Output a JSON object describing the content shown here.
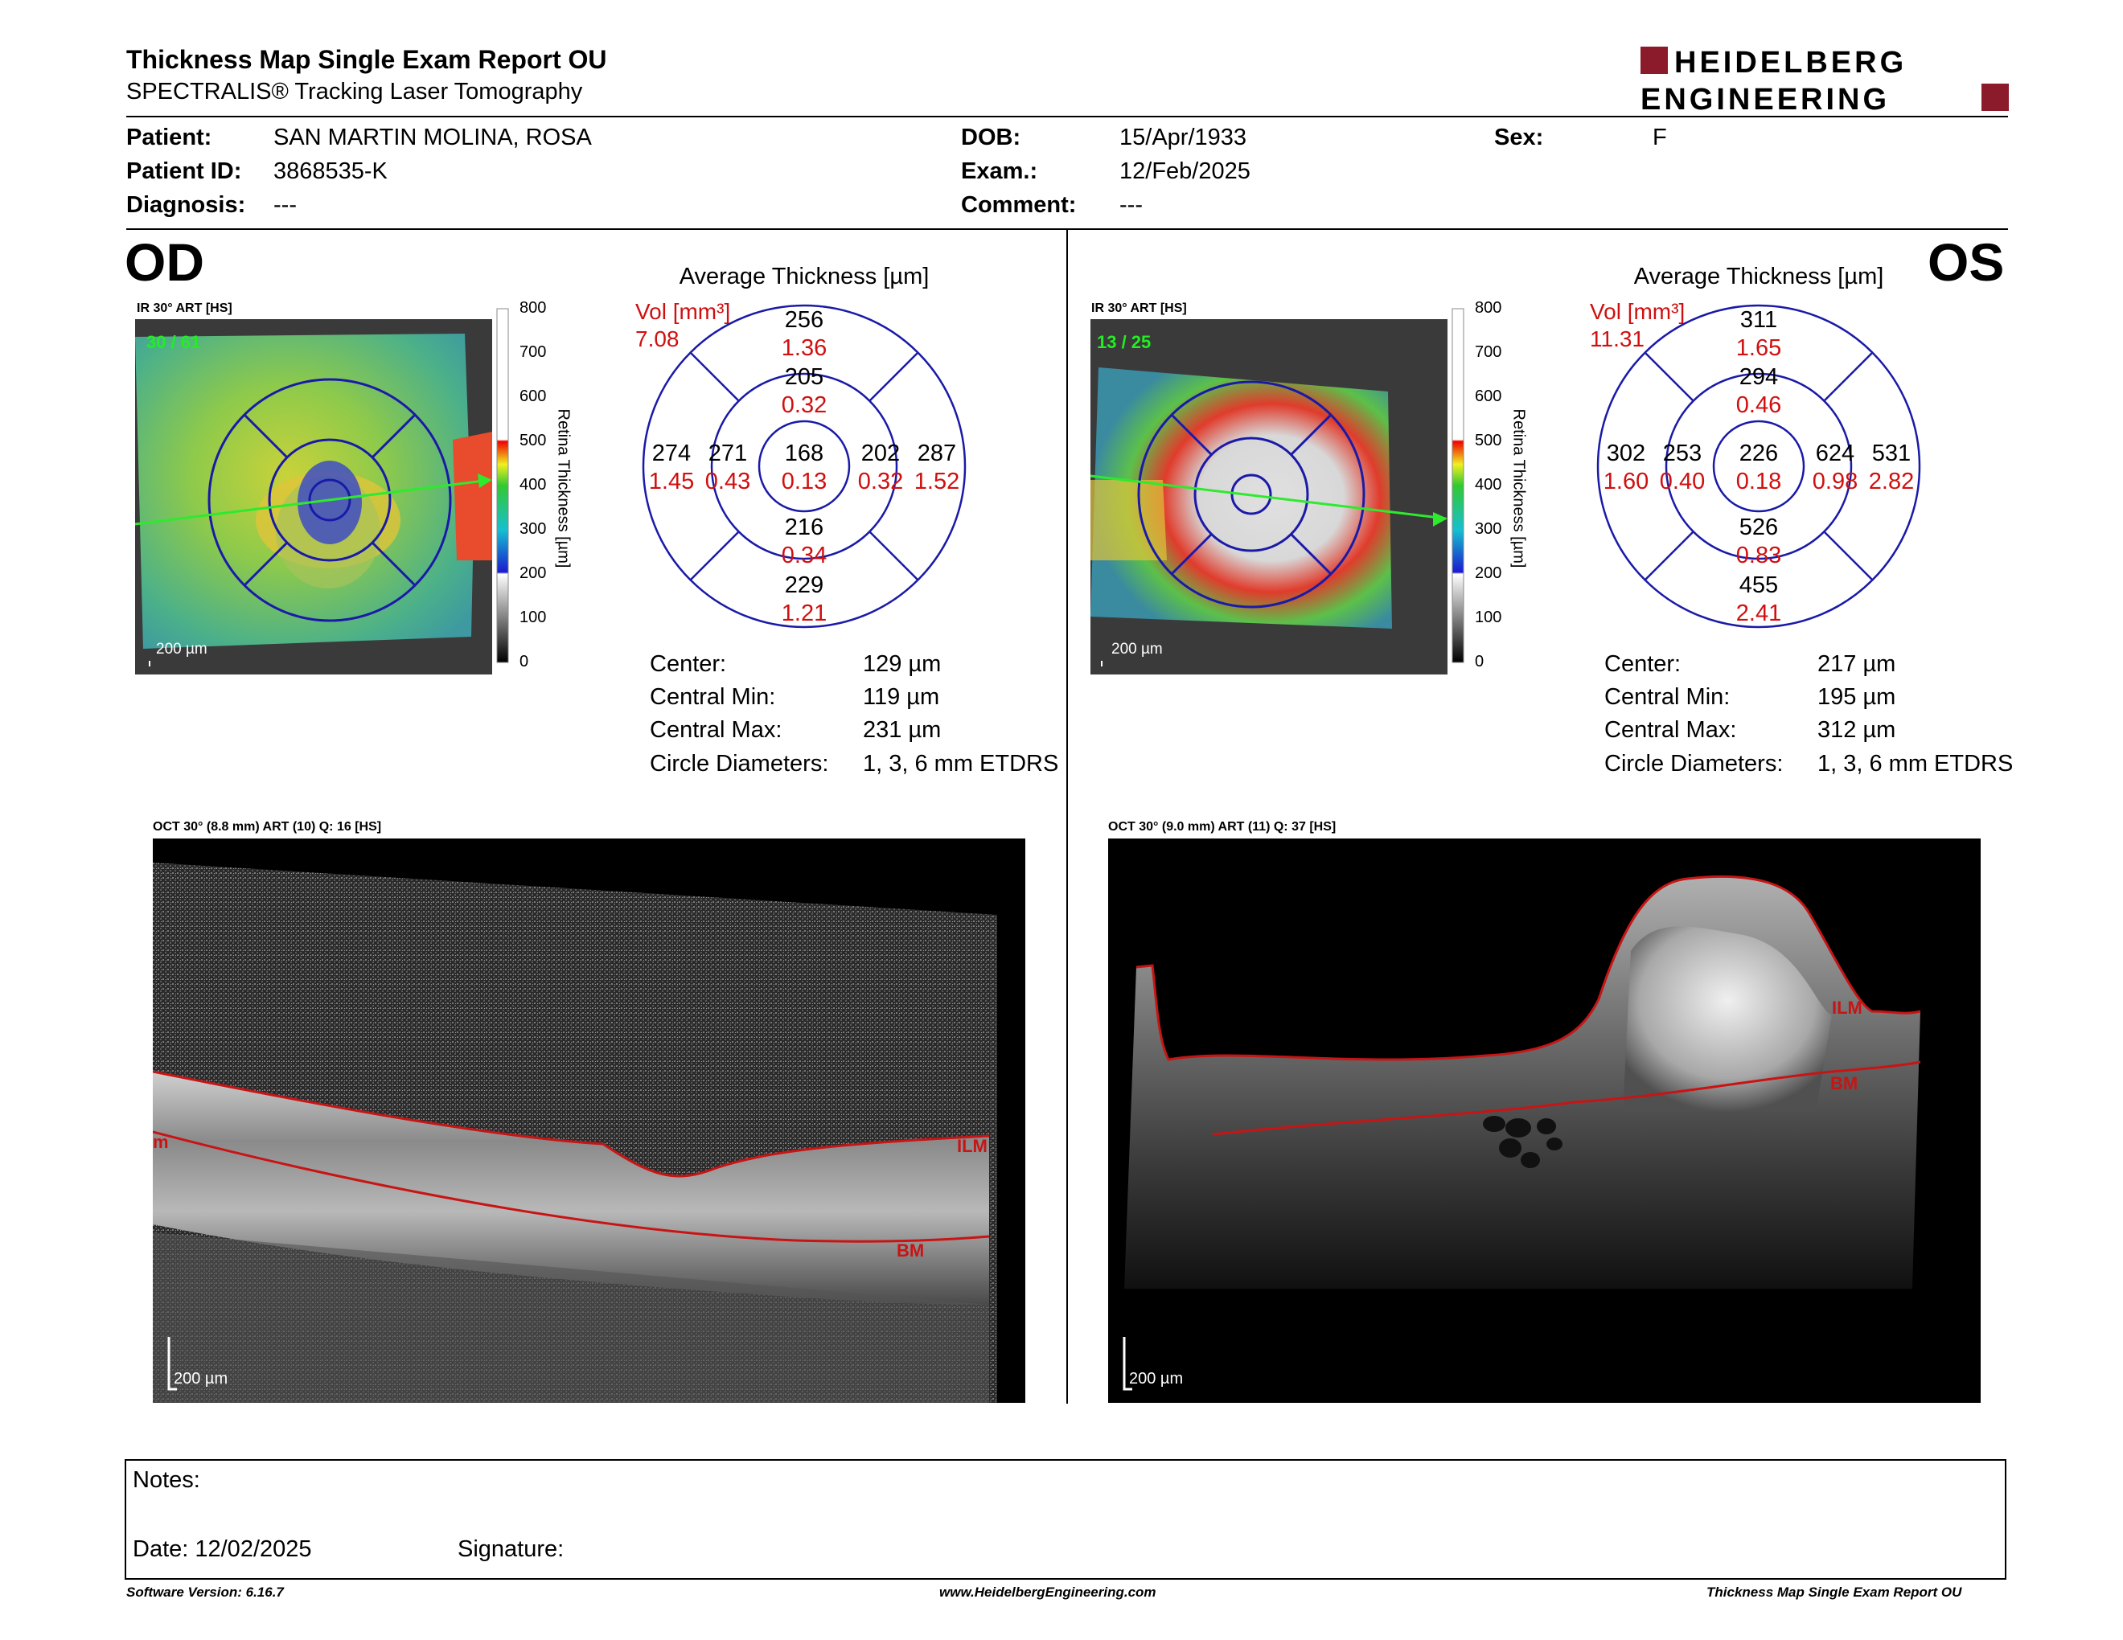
{
  "header": {
    "title": "Thickness Map Single Exam Report OU",
    "subtitle": "SPECTRALIS® Tracking Laser Tomography",
    "logo_line1": "HEIDELBERG",
    "logo_line2": "ENGINEERING"
  },
  "patient": {
    "name_label": "Patient:",
    "name": "SAN MARTIN MOLINA, ROSA",
    "id_label": "Patient ID:",
    "id": "3868535-K",
    "diagnosis_label": "Diagnosis:",
    "diagnosis": "---",
    "dob_label": "DOB:",
    "dob": "15/Apr/1933",
    "exam_label": "Exam.:",
    "exam": "12/Feb/2025",
    "comment_label": "Comment:",
    "comment": "---",
    "sex_label": "Sex:",
    "sex": "F"
  },
  "od": {
    "eye": "OD",
    "ir_caption": "IR 30° ART [HS]",
    "ir_count": "30 / 61",
    "scale_label": "200 µm",
    "colorbar_ticks": [
      "800",
      "700",
      "600",
      "500",
      "400",
      "300",
      "200",
      "100",
      "0"
    ],
    "colorbar_title": "Retina Thickness [µm]",
    "avg_title": "Average Thickness [µm]",
    "vol_label": "Vol [mm³]",
    "vol_total": "7.08",
    "sectors": {
      "outer_sup": {
        "t": "256",
        "v": "1.36"
      },
      "inner_sup": {
        "t": "205",
        "v": "0.32"
      },
      "outer_left": {
        "t": "274",
        "v": "1.45"
      },
      "inner_left": {
        "t": "271",
        "v": "0.43"
      },
      "center": {
        "t": "168",
        "v": "0.13"
      },
      "inner_right": {
        "t": "202",
        "v": "0.32"
      },
      "outer_right": {
        "t": "287",
        "v": "1.52"
      },
      "inner_inf": {
        "t": "216",
        "v": "0.34"
      },
      "outer_inf": {
        "t": "229",
        "v": "1.21"
      }
    },
    "stats": [
      {
        "label": "Center:",
        "value": "129 µm"
      },
      {
        "label": "Central Min:",
        "value": "119 µm"
      },
      {
        "label": "Central Max:",
        "value": "231 µm"
      },
      {
        "label": "Circle Diameters:",
        "value": "1, 3, 6 mm ETDRS"
      }
    ],
    "oct_caption": "OCT 30° (8.8 mm) ART (10) Q: 16 [HS]",
    "oct_scale": "200 µm",
    "ilm": "ILM",
    "bm": "BM",
    "edge_label": "m"
  },
  "os": {
    "eye": "OS",
    "ir_caption": "IR 30° ART [HS]",
    "ir_count": "13 / 25",
    "scale_label": "200 µm",
    "colorbar_ticks": [
      "800",
      "700",
      "600",
      "500",
      "400",
      "300",
      "200",
      "100",
      "0"
    ],
    "colorbar_title": "Retina Thickness [µm]",
    "avg_title": "Average Thickness [µm]",
    "vol_label": "Vol [mm³]",
    "vol_total": "11.31",
    "sectors": {
      "outer_sup": {
        "t": "311",
        "v": "1.65"
      },
      "inner_sup": {
        "t": "294",
        "v": "0.46"
      },
      "outer_left": {
        "t": "302",
        "v": "1.60"
      },
      "inner_left": {
        "t": "253",
        "v": "0.40"
      },
      "center": {
        "t": "226",
        "v": "0.18"
      },
      "inner_right": {
        "t": "624",
        "v": "0.98"
      },
      "outer_right": {
        "t": "531",
        "v": "2.82"
      },
      "inner_inf": {
        "t": "526",
        "v": "0.83"
      },
      "outer_inf": {
        "t": "455",
        "v": "2.41"
      }
    },
    "stats": [
      {
        "label": "Center:",
        "value": "217 µm"
      },
      {
        "label": "Central Min:",
        "value": "195 µm"
      },
      {
        "label": "Central Max:",
        "value": "312 µm"
      },
      {
        "label": "Circle Diameters:",
        "value": "1, 3, 6 mm ETDRS"
      }
    ],
    "oct_caption": "OCT 30° (9.0 mm) ART (11) Q: 37 [HS]",
    "oct_scale": "200 µm",
    "ilm": "ILM",
    "bm": "BM"
  },
  "notes": {
    "notes_label": "Notes:",
    "date_label": "Date: 12/02/2025",
    "signature_label": "Signature:"
  },
  "footer": {
    "left": "Software Version: 6.16.7",
    "center": "www.HeidelbergEngineering.com",
    "right": "Thickness Map Single Exam Report OU"
  },
  "colors": {
    "grid_blue": "#1a1aa8",
    "volume_red": "#d01010",
    "logo_red": "#8b1a2b",
    "oct_segment_red": "#c81414",
    "ir_count_green": "#22ee22"
  }
}
